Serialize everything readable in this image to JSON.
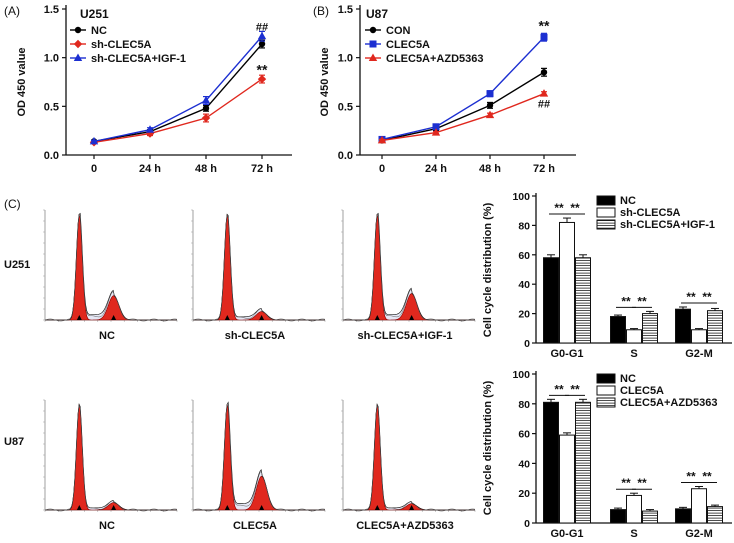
{
  "colors": {
    "black": "#000000",
    "red": "#e0281e",
    "blue": "#1c2fd1",
    "grey_fill": "#d0d0d0",
    "white": "#ffffff"
  },
  "chart_data": [
    {
      "id": "A",
      "panel_label": "(A)",
      "type": "line",
      "title": "U251",
      "xlabel": "",
      "ylabel": "OD 450 value",
      "categories": [
        "0",
        "24 h",
        "48 h",
        "72 h"
      ],
      "yticks": [
        "0.0",
        "0.5",
        "1.0",
        "1.5"
      ],
      "ylim": [
        0,
        1.5
      ],
      "grid": false,
      "legend_position": "top-left",
      "series": [
        {
          "name": "NC",
          "color": "#000000",
          "marker": "circle",
          "values": [
            0.14,
            0.24,
            0.48,
            1.14
          ],
          "err": [
            0.01,
            0.02,
            0.03,
            0.04
          ]
        },
        {
          "name": "sh-CLEC5A",
          "color": "#e0281e",
          "marker": "diamond",
          "values": [
            0.13,
            0.22,
            0.38,
            0.78
          ],
          "err": [
            0.01,
            0.02,
            0.04,
            0.04
          ]
        },
        {
          "name": "sh-CLEC5A+IGF-1",
          "color": "#1c2fd1",
          "marker": "triangle",
          "values": [
            0.14,
            0.26,
            0.56,
            1.22
          ],
          "err": [
            0.01,
            0.02,
            0.04,
            0.05
          ]
        }
      ],
      "annotations": [
        {
          "text": "##",
          "at": 3,
          "value": 1.32
        },
        {
          "text": "**",
          "at": 3,
          "value": 0.87
        }
      ]
    },
    {
      "id": "B",
      "panel_label": "(B)",
      "type": "line",
      "title": "U87",
      "xlabel": "",
      "ylabel": "OD 450 value",
      "categories": [
        "0",
        "24 h",
        "48 h",
        "72 h"
      ],
      "yticks": [
        "0.0",
        "0.5",
        "1.0",
        "1.5"
      ],
      "ylim": [
        0,
        1.5
      ],
      "grid": false,
      "legend_position": "top-left",
      "series": [
        {
          "name": "CON",
          "color": "#000000",
          "marker": "circle",
          "values": [
            0.15,
            0.27,
            0.51,
            0.85
          ],
          "err": [
            0.01,
            0.02,
            0.03,
            0.04
          ]
        },
        {
          "name": "CLEC5A",
          "color": "#1c2fd1",
          "marker": "square",
          "values": [
            0.16,
            0.29,
            0.63,
            1.21
          ],
          "err": [
            0.01,
            0.02,
            0.03,
            0.04
          ]
        },
        {
          "name": "CLEC5A+AZD5363",
          "color": "#e0281e",
          "marker": "triangle",
          "values": [
            0.15,
            0.23,
            0.41,
            0.63
          ],
          "err": [
            0.01,
            0.01,
            0.02,
            0.02
          ]
        }
      ],
      "annotations": [
        {
          "text": "**",
          "at": 3,
          "value": 1.32
        },
        {
          "text": "##",
          "at": 3,
          "value": 0.53
        }
      ]
    },
    {
      "id": "C-U251",
      "type": "bar",
      "ylabel": "Cell cycle distribution (%)",
      "categories": [
        "G0-G1",
        "S",
        "G2-M"
      ],
      "yticks": [
        "0",
        "20",
        "40",
        "60",
        "80",
        "100"
      ],
      "ylim": [
        0,
        100
      ],
      "grid": false,
      "legend_position": "top-right",
      "series": [
        {
          "name": "NC",
          "fill": "black",
          "values": [
            58,
            18,
            23
          ],
          "err": [
            2,
            1,
            1.5
          ]
        },
        {
          "name": "sh-CLEC5A",
          "fill": "white",
          "values": [
            82,
            9,
            9
          ],
          "err": [
            3,
            0.8,
            0.8
          ]
        },
        {
          "name": "sh-CLEC5A+IGF-1",
          "fill": "hatch",
          "values": [
            58,
            20,
            22
          ],
          "err": [
            2,
            1.5,
            1.5
          ]
        }
      ],
      "significance": "**"
    },
    {
      "id": "C-U87",
      "type": "bar",
      "ylabel": "Cell cycle distribution (%)",
      "categories": [
        "G0-G1",
        "S",
        "G2-M"
      ],
      "yticks": [
        "0",
        "20",
        "40",
        "60",
        "80",
        "100"
      ],
      "ylim": [
        0,
        100
      ],
      "grid": false,
      "legend_position": "top-right",
      "series": [
        {
          "name": "NC",
          "fill": "black",
          "values": [
            81,
            9,
            9.5
          ],
          "err": [
            2,
            1,
            1
          ]
        },
        {
          "name": "CLEC5A",
          "fill": "white",
          "values": [
            59,
            18.5,
            23
          ],
          "err": [
            1.5,
            1.5,
            1.5
          ]
        },
        {
          "name": "CLEC5A+AZD5363",
          "fill": "hatch",
          "values": [
            81,
            8,
            11
          ],
          "err": [
            2,
            1,
            1
          ]
        }
      ],
      "significance": "**"
    },
    {
      "id": "C-histograms",
      "type": "area",
      "panel_label": "(C)",
      "rows": [
        {
          "label": "U251",
          "panels": [
            {
              "label": "NC",
              "g1": 1.0,
              "g2": 0.23,
              "s": 0.05
            },
            {
              "label": "sh-CLEC5A",
              "g1": 1.0,
              "g2": 0.08,
              "s": 0.03
            },
            {
              "label": "sh-CLEC5A+IGF-1",
              "g1": 1.0,
              "g2": 0.25,
              "s": 0.05
            }
          ]
        },
        {
          "label": "U87",
          "panels": [
            {
              "label": "NC",
              "g1": 1.0,
              "g2": 0.07,
              "s": 0.02
            },
            {
              "label": "CLEC5A",
              "g1": 1.0,
              "g2": 0.32,
              "s": 0.06
            },
            {
              "label": "CLEC5A+AZD5363",
              "g1": 1.0,
              "g2": 0.06,
              "s": 0.02
            }
          ]
        }
      ]
    }
  ]
}
